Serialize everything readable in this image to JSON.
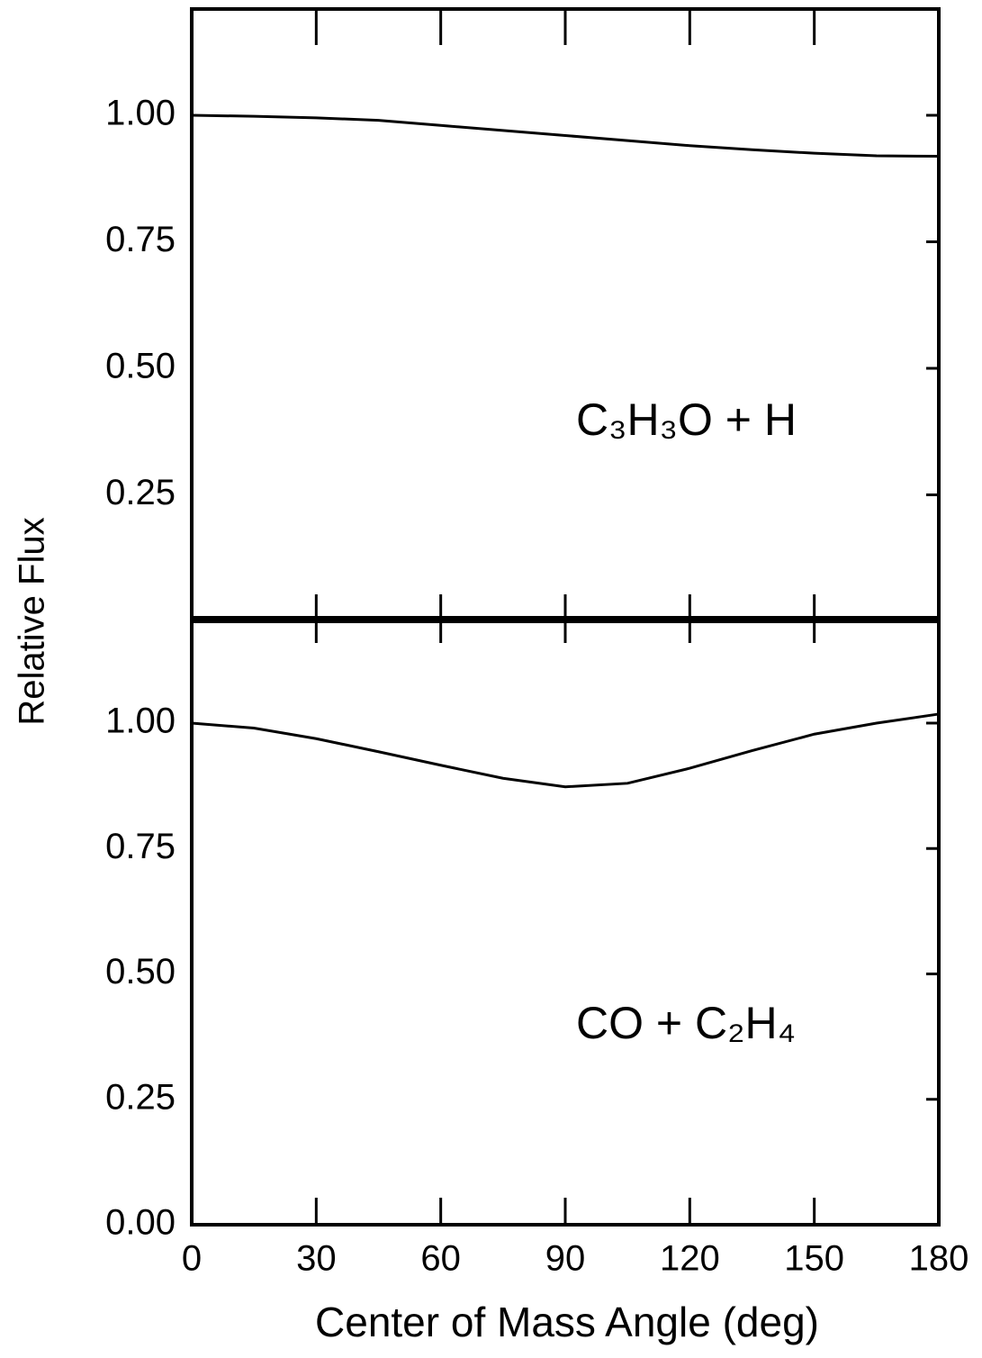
{
  "chart_data": [
    {
      "type": "line",
      "ylabel": "Relative Flux",
      "annotation": "C₃H₃O + H",
      "color": "#000000",
      "x": [
        0,
        15,
        30,
        45,
        60,
        75,
        90,
        105,
        120,
        135,
        150,
        165,
        180
      ],
      "values": [
        1.0,
        0.998,
        0.995,
        0.99,
        0.98,
        0.97,
        0.96,
        0.95,
        0.94,
        0.932,
        0.925,
        0.92,
        0.919
      ],
      "xlim": [
        0,
        180
      ],
      "ylim": [
        0,
        1.21
      ],
      "yticks": [
        0.25,
        {
          "value": 0.5,
          "label": "0.50"
        },
        0.75,
        {
          "value": 1,
          "label": "1.00"
        }
      ]
    },
    {
      "type": "line",
      "xlabel": "Center of Mass Angle (deg)",
      "annotation": "CO + C₂H₄",
      "color": "#000000",
      "x": [
        0,
        15,
        30,
        45,
        60,
        75,
        90,
        105,
        120,
        135,
        150,
        165,
        180
      ],
      "values": [
        1.0,
        0.99,
        0.969,
        0.943,
        0.916,
        0.89,
        0.873,
        0.88,
        0.91,
        0.945,
        0.978,
        1.0,
        1.018
      ],
      "xlim": [
        0,
        180
      ],
      "ylim": [
        0,
        1.21
      ],
      "xticks": [
        0,
        30,
        60,
        90,
        120,
        150,
        180
      ],
      "yticks": [
        {
          "value": 0,
          "label": "0.00"
        },
        0.25,
        {
          "value": 0.5,
          "label": "0.50"
        },
        0.75,
        {
          "value": 1,
          "label": "1.00"
        }
      ]
    }
  ]
}
